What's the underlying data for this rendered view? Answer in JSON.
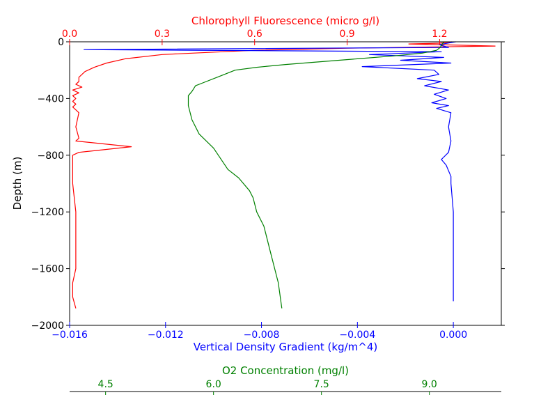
{
  "chart_data": {
    "type": "line",
    "title": "",
    "ylabel": "Depth (m)",
    "ylim": [
      -2000,
      0
    ],
    "y_ticks": [
      0,
      -400,
      -800,
      -1200,
      -1600,
      -2000
    ],
    "y_tick_labels": [
      "0",
      "−400",
      "−800",
      "−1200",
      "−1600",
      "−2000"
    ],
    "axes": {
      "density": {
        "label": "Vertical Density Gradient (kg/m^4)",
        "color": "#0000ff",
        "position": "bottom",
        "xlim": [
          -0.016,
          0.002
        ],
        "ticks": [
          -0.016,
          -0.012,
          -0.008,
          -0.004,
          0.0
        ],
        "tick_labels": [
          "−0.016",
          "−0.012",
          "−0.008",
          "−0.004",
          "0.000"
        ]
      },
      "chlorophyll": {
        "label": "Chlorophyll Fluorescence (micro g/l)",
        "color": "#ff0000",
        "position": "top",
        "xlim": [
          0.0,
          1.4
        ],
        "ticks": [
          0.0,
          0.3,
          0.6,
          0.9,
          1.2
        ],
        "tick_labels": [
          "0.0",
          "0.3",
          "0.6",
          "0.9",
          "1.2"
        ]
      },
      "oxygen": {
        "label": "O2 Concentration (mg/l)",
        "color": "#008000",
        "position": "bottom-offset",
        "xlim": [
          4.0,
          10.0
        ],
        "ticks": [
          4.5,
          6.0,
          7.5,
          9.0
        ],
        "tick_labels": [
          "4.5",
          "6.0",
          "7.5",
          "9.0"
        ]
      }
    },
    "series": [
      {
        "axis": "chlorophyll",
        "color": "#ff0000",
        "x": [
          1.24,
          1.2,
          1.1,
          1.38,
          0.9,
          0.6,
          0.3,
          0.18,
          0.12,
          0.08,
          0.05,
          0.03,
          0.03,
          0.02,
          0.04,
          0.01,
          0.03,
          0.01,
          0.02,
          0.01,
          0.02,
          0.01,
          0.02,
          0.03,
          0.02,
          0.03,
          0.02,
          0.2,
          0.03,
          0.01,
          0.01,
          0.02,
          0.02,
          0.02,
          0.01,
          0.01,
          0.02
        ],
        "y": [
          0,
          -10,
          -15,
          -30,
          -45,
          -60,
          -90,
          -120,
          -150,
          -180,
          -210,
          -250,
          -280,
          -300,
          -320,
          -340,
          -360,
          -380,
          -400,
          -420,
          -440,
          -460,
          -480,
          -500,
          -600,
          -680,
          -700,
          -740,
          -780,
          -800,
          -1000,
          -1200,
          -1400,
          -1600,
          -1700,
          -1800,
          -1880
        ]
      },
      {
        "axis": "density",
        "color": "#0000ff",
        "x": [
          0.0001,
          -0.0006,
          -0.0002,
          -0.0154,
          -0.0005,
          -0.0035,
          -0.0004,
          -0.0022,
          -0.0001,
          -0.0038,
          -0.0008,
          -0.0006,
          -0.0015,
          -0.0005,
          -0.0012,
          -0.0002,
          -0.0008,
          -0.0003,
          -0.0009,
          -0.0002,
          -0.0007,
          -0.0001,
          -0.0002,
          -0.0001,
          -0.0002,
          -0.0005,
          -0.0003,
          -0.0001,
          -0.0001,
          0.0,
          0.0,
          0.0,
          0.0,
          0.0
        ],
        "y": [
          0,
          -20,
          -40,
          -55,
          -70,
          -90,
          -110,
          -130,
          -150,
          -175,
          -200,
          -230,
          -260,
          -280,
          -310,
          -340,
          -370,
          -400,
          -430,
          -450,
          -470,
          -500,
          -600,
          -700,
          -780,
          -830,
          -870,
          -950,
          -1000,
          -1200,
          -1400,
          -1600,
          -1700,
          -1830
        ]
      },
      {
        "axis": "oxygen",
        "color": "#008000",
        "x": [
          9.2,
          9.15,
          9.1,
          8.9,
          8.5,
          8.0,
          7.5,
          7.0,
          6.6,
          6.3,
          6.2,
          6.05,
          5.85,
          5.75,
          5.7,
          5.65,
          5.65,
          5.7,
          5.8,
          6.0,
          6.2,
          6.35,
          6.5,
          6.55,
          6.6,
          6.7,
          6.8,
          6.9,
          6.95
        ],
        "y": [
          0,
          -40,
          -60,
          -80,
          -100,
          -120,
          -140,
          -160,
          -180,
          -200,
          -220,
          -250,
          -290,
          -310,
          -350,
          -380,
          -450,
          -550,
          -650,
          -750,
          -900,
          -960,
          -1050,
          -1100,
          -1200,
          -1300,
          -1500,
          -1700,
          -1880
        ]
      }
    ]
  }
}
